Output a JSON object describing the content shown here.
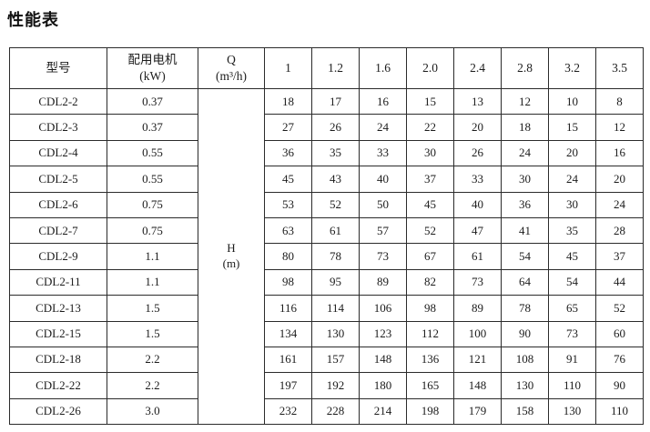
{
  "title": "性能表",
  "table": {
    "header": {
      "col_model": "型号",
      "col_motor_line1": "配用电机",
      "col_motor_line2": "(kW)",
      "col_q_line1": "Q",
      "col_q_line2": "(m³/h)",
      "flow_values": [
        "1",
        "1.2",
        "1.6",
        "2.0",
        "2.4",
        "2.8",
        "3.2",
        "3.5"
      ]
    },
    "h_label_line1": "H",
    "h_label_line2": "(m)",
    "rows": [
      {
        "model": "CDL2-2",
        "motor": "0.37",
        "values": [
          "18",
          "17",
          "16",
          "15",
          "13",
          "12",
          "10",
          "8"
        ]
      },
      {
        "model": "CDL2-3",
        "motor": "0.37",
        "values": [
          "27",
          "26",
          "24",
          "22",
          "20",
          "18",
          "15",
          "12"
        ]
      },
      {
        "model": "CDL2-4",
        "motor": "0.55",
        "values": [
          "36",
          "35",
          "33",
          "30",
          "26",
          "24",
          "20",
          "16"
        ]
      },
      {
        "model": "CDL2-5",
        "motor": "0.55",
        "values": [
          "45",
          "43",
          "40",
          "37",
          "33",
          "30",
          "24",
          "20"
        ]
      },
      {
        "model": "CDL2-6",
        "motor": "0.75",
        "values": [
          "53",
          "52",
          "50",
          "45",
          "40",
          "36",
          "30",
          "24"
        ]
      },
      {
        "model": "CDL2-7",
        "motor": "0.75",
        "values": [
          "63",
          "61",
          "57",
          "52",
          "47",
          "41",
          "35",
          "28"
        ]
      },
      {
        "model": "CDL2-9",
        "motor": "1.1",
        "values": [
          "80",
          "78",
          "73",
          "67",
          "61",
          "54",
          "45",
          "37"
        ]
      },
      {
        "model": "CDL2-11",
        "motor": "1.1",
        "values": [
          "98",
          "95",
          "89",
          "82",
          "73",
          "64",
          "54",
          "44"
        ]
      },
      {
        "model": "CDL2-13",
        "motor": "1.5",
        "values": [
          "116",
          "114",
          "106",
          "98",
          "89",
          "78",
          "65",
          "52"
        ]
      },
      {
        "model": "CDL2-15",
        "motor": "1.5",
        "values": [
          "134",
          "130",
          "123",
          "112",
          "100",
          "90",
          "73",
          "60"
        ]
      },
      {
        "model": "CDL2-18",
        "motor": "2.2",
        "values": [
          "161",
          "157",
          "148",
          "136",
          "121",
          "108",
          "91",
          "76"
        ]
      },
      {
        "model": "CDL2-22",
        "motor": "2.2",
        "values": [
          "197",
          "192",
          "180",
          "165",
          "148",
          "130",
          "110",
          "90"
        ]
      },
      {
        "model": "CDL2-26",
        "motor": "3.0",
        "values": [
          "232",
          "228",
          "214",
          "198",
          "179",
          "158",
          "130",
          "110"
        ]
      }
    ]
  }
}
